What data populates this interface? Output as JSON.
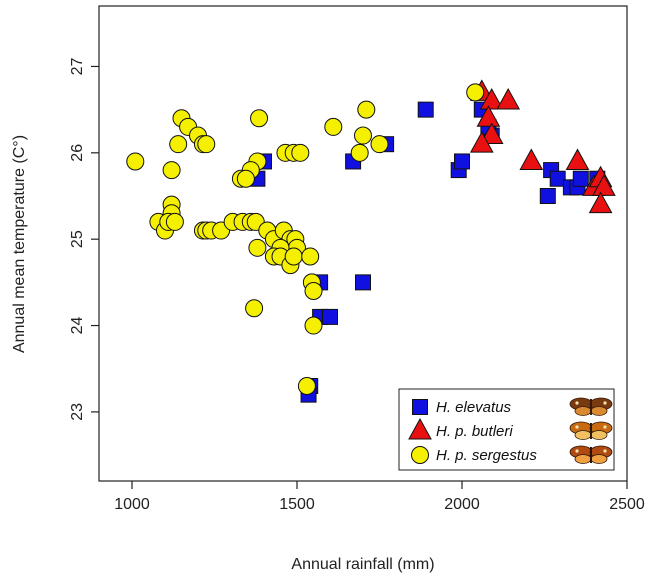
{
  "chart_data": {
    "type": "scatter",
    "xlabel": "Annual rainfall (mm)",
    "ylabel": "Annual mean temperature (C°)",
    "xlim": [
      900,
      2500
    ],
    "ylim": [
      22.2,
      27.7
    ],
    "x_ticks": [
      1000,
      1500,
      2000,
      2500
    ],
    "y_ticks": [
      23,
      24,
      25,
      26,
      27
    ],
    "x_tick_labels": [
      "1000",
      "1500",
      "2000",
      "2500"
    ],
    "y_tick_labels": [
      "23",
      "24",
      "25",
      "26",
      "27"
    ],
    "grid": false,
    "legend_position": "bottom-right",
    "series": [
      {
        "name": "H. elevatus",
        "marker": "square",
        "color": "#1010e0",
        "points": [
          [
            1890,
            26.5
          ],
          [
            2060,
            26.5
          ],
          [
            2090,
            26.2
          ],
          [
            2080,
            26.3
          ],
          [
            1990,
            25.8
          ],
          [
            2000,
            25.9
          ],
          [
            2270,
            25.8
          ],
          [
            2290,
            25.7
          ],
          [
            2330,
            25.6
          ],
          [
            2350,
            25.6
          ],
          [
            2360,
            25.7
          ],
          [
            2410,
            25.7
          ],
          [
            2260,
            25.5
          ],
          [
            1770,
            26.1
          ],
          [
            1670,
            25.9
          ],
          [
            1400,
            25.9
          ],
          [
            1380,
            25.7
          ],
          [
            1570,
            24.5
          ],
          [
            1700,
            24.5
          ],
          [
            1570,
            24.1
          ],
          [
            1600,
            24.1
          ],
          [
            1540,
            23.3
          ],
          [
            1535,
            23.2
          ]
        ]
      },
      {
        "name": "H. p. butleri",
        "marker": "triangle",
        "color": "#e81010",
        "points": [
          [
            2060,
            26.7
          ],
          [
            2090,
            26.6
          ],
          [
            2140,
            26.6
          ],
          [
            2080,
            26.4
          ],
          [
            2090,
            26.2
          ],
          [
            2060,
            26.1
          ],
          [
            2210,
            25.9
          ],
          [
            2350,
            25.9
          ],
          [
            2400,
            25.6
          ],
          [
            2420,
            25.7
          ],
          [
            2430,
            25.6
          ],
          [
            2420,
            25.4
          ]
        ]
      },
      {
        "name": "H. p. sergestus",
        "marker": "circle",
        "color": "#f4f000",
        "points": [
          [
            2040,
            26.7
          ],
          [
            1710,
            26.5
          ],
          [
            1150,
            26.4
          ],
          [
            1385,
            26.4
          ],
          [
            1170,
            26.3
          ],
          [
            1200,
            26.2
          ],
          [
            1610,
            26.3
          ],
          [
            1700,
            26.2
          ],
          [
            1750,
            26.1
          ],
          [
            1690,
            26.0
          ],
          [
            1140,
            26.1
          ],
          [
            1215,
            26.1
          ],
          [
            1225,
            26.1
          ],
          [
            1010,
            25.9
          ],
          [
            1380,
            25.9
          ],
          [
            1465,
            26.0
          ],
          [
            1490,
            26.0
          ],
          [
            1510,
            26.0
          ],
          [
            1120,
            25.8
          ],
          [
            1360,
            25.8
          ],
          [
            1330,
            25.7
          ],
          [
            1345,
            25.7
          ],
          [
            1120,
            25.4
          ],
          [
            1120,
            25.3
          ],
          [
            1080,
            25.2
          ],
          [
            1100,
            25.1
          ],
          [
            1110,
            25.2
          ],
          [
            1130,
            25.2
          ],
          [
            1215,
            25.1
          ],
          [
            1225,
            25.1
          ],
          [
            1240,
            25.1
          ],
          [
            1270,
            25.1
          ],
          [
            1305,
            25.2
          ],
          [
            1335,
            25.2
          ],
          [
            1360,
            25.2
          ],
          [
            1375,
            25.2
          ],
          [
            1410,
            25.1
          ],
          [
            1430,
            25.0
          ],
          [
            1460,
            25.1
          ],
          [
            1480,
            25.0
          ],
          [
            1495,
            25.0
          ],
          [
            1500,
            24.9
          ],
          [
            1450,
            24.9
          ],
          [
            1430,
            24.8
          ],
          [
            1450,
            24.8
          ],
          [
            1480,
            24.7
          ],
          [
            1490,
            24.8
          ],
          [
            1380,
            24.9
          ],
          [
            1540,
            24.8
          ],
          [
            1545,
            24.5
          ],
          [
            1550,
            24.4
          ],
          [
            1370,
            24.2
          ],
          [
            1550,
            24.0
          ],
          [
            1530,
            23.3
          ]
        ]
      }
    ]
  },
  "legend": {
    "items": [
      {
        "label": "H. elevatus",
        "marker": "square",
        "color": "#1010e0",
        "butterfly": "elevatus"
      },
      {
        "label": "H. p. butleri",
        "marker": "triangle",
        "color": "#e81010",
        "butterfly": "butleri"
      },
      {
        "label": "H. p. sergestus",
        "marker": "circle",
        "color": "#f4f000",
        "butterfly": "sergestus"
      }
    ]
  }
}
